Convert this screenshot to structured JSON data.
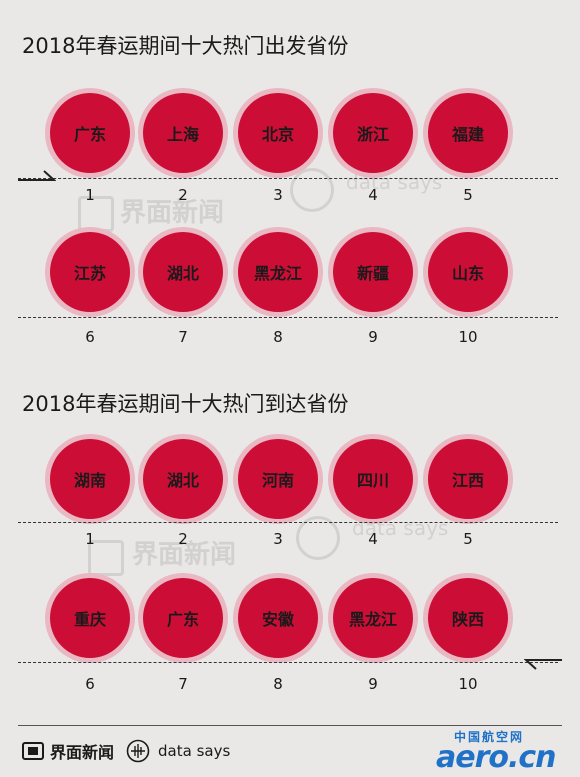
{
  "departure": {
    "title": "2018年春运期间十大热门出发省份",
    "row1": [
      "广东",
      "上海",
      "北京",
      "浙江",
      "福建"
    ],
    "row1_ranks": [
      "1",
      "2",
      "3",
      "4",
      "5"
    ],
    "row2": [
      "江苏",
      "湖北",
      "黑龙江",
      "新疆",
      "山东"
    ],
    "row2_ranks": [
      "6",
      "7",
      "8",
      "9",
      "10"
    ]
  },
  "arrival": {
    "title": "2018年春运期间十大热门到达省份",
    "row1": [
      "湖南",
      "湖北",
      "河南",
      "四川",
      "江西"
    ],
    "row1_ranks": [
      "1",
      "2",
      "3",
      "4",
      "5"
    ],
    "row2": [
      "重庆",
      "广东",
      "安徽",
      "黑龙江",
      "陕西"
    ],
    "row2_ranks": [
      "6",
      "7",
      "8",
      "9",
      "10"
    ]
  },
  "watermark": {
    "brand": "界面新闻",
    "datasays": "data says"
  },
  "footer": {
    "brand": "界面新闻",
    "datasays": "data says",
    "aero_cn": "中国航空网",
    "aero_en": "aero.cn"
  },
  "colors": {
    "background": "#e9e8e6",
    "circle": "#cc0e36",
    "circle_ring": "#e9b8c2",
    "aero_blue": "#1f72c8"
  }
}
